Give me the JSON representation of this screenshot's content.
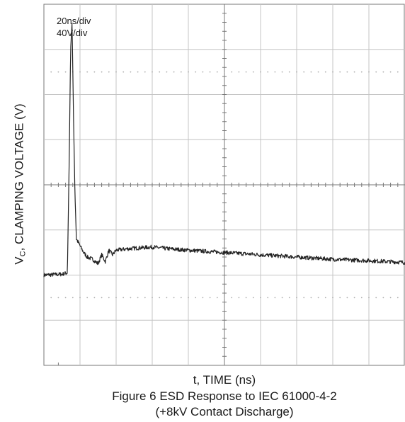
{
  "chart_data": {
    "type": "line",
    "title": "Figure 6 ESD Response to IEC 61000-4-2",
    "subtitle": "(+8kV Contact Discharge)",
    "xlabel": "t, TIME (ns)",
    "ylabel": {
      "prefix": "V",
      "subscript": "C",
      "rest": ", CLAMPING VOLTAGE (V)"
    },
    "annotations": [
      "20ns/div",
      "40V/div"
    ],
    "grid": true,
    "x_divisions": 10,
    "y_divisions": 8,
    "xlim": [
      0,
      10
    ],
    "ylim": [
      0,
      8
    ],
    "x_unit": "divisions (20ns/div)",
    "y_unit": "divisions (40V/div)",
    "series": [
      {
        "x": [
          0,
          0.5,
          0.65,
          0.7,
          0.74,
          0.78,
          0.82,
          0.86,
          0.9,
          1.0,
          1.1,
          1.2,
          1.35,
          1.5,
          1.6,
          1.7,
          1.8,
          1.9,
          2.0,
          2.3,
          2.6,
          3.0,
          3.5,
          4.0,
          5.0,
          6.0,
          7.0,
          8.0,
          9.0,
          10.0
        ],
        "y": [
          2.0,
          2.02,
          2.05,
          4.5,
          7.0,
          7.6,
          5.5,
          3.8,
          2.8,
          2.65,
          2.5,
          2.4,
          2.35,
          2.25,
          2.45,
          2.3,
          2.55,
          2.45,
          2.55,
          2.58,
          2.6,
          2.62,
          2.58,
          2.55,
          2.5,
          2.45,
          2.4,
          2.35,
          2.32,
          2.28
        ]
      }
    ],
    "colors": {
      "trace": "#222222",
      "grid": "#c4c4c4",
      "axis": "#777777",
      "dots": "#aaaaaa"
    }
  }
}
